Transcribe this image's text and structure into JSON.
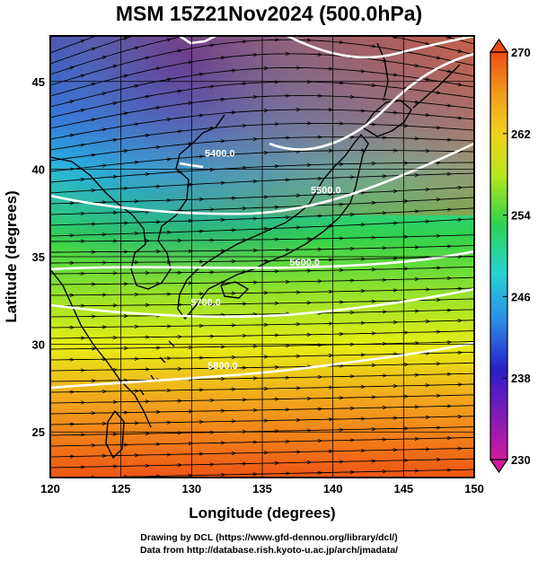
{
  "title": "MSM 15Z21Nov2024 (500.0hPa)",
  "credits": {
    "line1": "Drawing by DCL (https://www.gfd-dennou.org/library/dcl/)",
    "line2": "Data from http://database.rish.kyoto-u.ac.jp/arch/jmadata/"
  },
  "chart_data": {
    "type": "map",
    "xlabel": "Longitude (degrees)",
    "ylabel": "Latitude  (degrees)",
    "xlim": [
      120,
      150
    ],
    "ylim": [
      22.4,
      47.6
    ],
    "x_ticks": [
      120,
      125,
      130,
      135,
      140,
      145,
      150
    ],
    "y_ticks": [
      25,
      30,
      35,
      40,
      45
    ],
    "grid": true,
    "colorbar": {
      "range": [
        230,
        270
      ],
      "labels": [
        270,
        262,
        254,
        246,
        238,
        230
      ],
      "colors": [
        "#d11a9e",
        "#3411c8",
        "#2b8be8",
        "#27d4d0",
        "#2fd24f",
        "#d6ee12",
        "#f0a51c",
        "#ee5a16"
      ]
    },
    "contours": [
      {
        "label": "5400.0",
        "lon": 132.0,
        "lat": 40.7
      },
      {
        "label": "5500.0",
        "lon": 139.5,
        "lat": 38.6
      },
      {
        "label": "5600.0",
        "lon": 138.0,
        "lat": 34.5
      },
      {
        "label": "5700.0",
        "lon": 131.0,
        "lat": 32.2
      },
      {
        "label": "5800.0",
        "lon": 132.2,
        "lat": 28.6
      }
    ]
  }
}
